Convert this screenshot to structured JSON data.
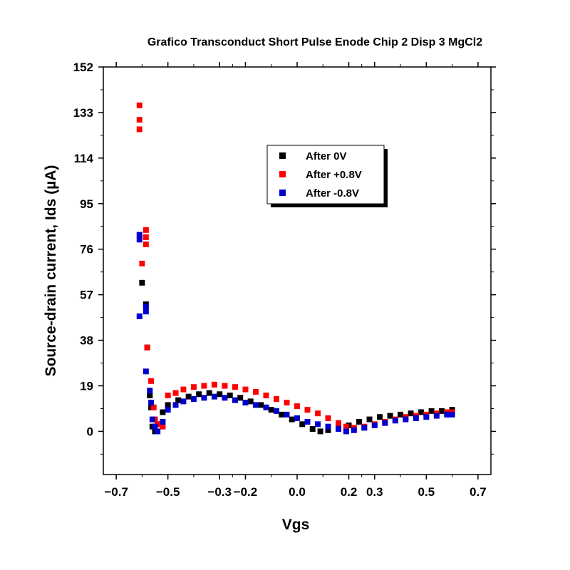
{
  "chart_data": {
    "type": "scatter",
    "title": "Grafico Transconduct Short Pulse Enode Chip 2 Disp 3 MgCl2",
    "xlabel": "Vgs",
    "ylabel": "Source-drain current, Ids (µA)",
    "xlim": [
      -0.75,
      0.75
    ],
    "ylim": [
      -18,
      152
    ],
    "x_ticks": [
      -0.7,
      -0.5,
      -0.3,
      -0.2,
      0.0,
      0.2,
      0.3,
      0.5,
      0.7
    ],
    "x_tick_labels": [
      "−0.7",
      "−0.5",
      "−0.3",
      "−0.2",
      "0.0",
      "0.2",
      "0.3",
      "0.5",
      "0.7"
    ],
    "y_ticks": [
      0,
      19,
      38,
      57,
      76,
      95,
      114,
      133,
      152
    ],
    "y_tick_labels": [
      "0",
      "19",
      "38",
      "57",
      "76",
      "95",
      "114",
      "133",
      "152"
    ],
    "grid": false,
    "legend_position": "top-right",
    "series": [
      {
        "name": "After 0V",
        "color": "#000000",
        "points": [
          [
            -0.6,
            62
          ],
          [
            -0.585,
            53
          ],
          [
            -0.58,
            35
          ],
          [
            -0.57,
            15
          ],
          [
            -0.565,
            10
          ],
          [
            -0.56,
            2
          ],
          [
            -0.55,
            0
          ],
          [
            -0.54,
            3
          ],
          [
            -0.52,
            8
          ],
          [
            -0.5,
            11
          ],
          [
            -0.46,
            13
          ],
          [
            -0.42,
            14.5
          ],
          [
            -0.38,
            15.5
          ],
          [
            -0.34,
            16
          ],
          [
            -0.3,
            15.5
          ],
          [
            -0.26,
            15
          ],
          [
            -0.22,
            14
          ],
          [
            -0.18,
            12.5
          ],
          [
            -0.14,
            11
          ],
          [
            -0.1,
            9
          ],
          [
            -0.06,
            7
          ],
          [
            -0.02,
            5
          ],
          [
            0.02,
            3
          ],
          [
            0.06,
            1
          ],
          [
            0.09,
            0
          ],
          [
            0.12,
            0.5
          ],
          [
            0.16,
            1.5
          ],
          [
            0.2,
            2.5
          ],
          [
            0.24,
            4
          ],
          [
            0.28,
            5
          ],
          [
            0.32,
            6
          ],
          [
            0.36,
            6.5
          ],
          [
            0.4,
            7
          ],
          [
            0.44,
            7.5
          ],
          [
            0.48,
            8
          ],
          [
            0.52,
            8.5
          ],
          [
            0.56,
            8.5
          ],
          [
            0.6,
            9
          ]
        ]
      },
      {
        "name": "After +0.8V",
        "color": "#ff0000",
        "points": [
          [
            -0.61,
            136
          ],
          [
            -0.61,
            130
          ],
          [
            -0.61,
            126
          ],
          [
            -0.6,
            70
          ],
          [
            -0.585,
            84
          ],
          [
            -0.585,
            81
          ],
          [
            -0.585,
            78
          ],
          [
            -0.58,
            35
          ],
          [
            -0.565,
            21
          ],
          [
            -0.555,
            10
          ],
          [
            -0.55,
            5
          ],
          [
            -0.54,
            3
          ],
          [
            -0.52,
            2
          ],
          [
            -0.5,
            15
          ],
          [
            -0.47,
            16
          ],
          [
            -0.44,
            17.5
          ],
          [
            -0.4,
            18.5
          ],
          [
            -0.36,
            19
          ],
          [
            -0.32,
            19.5
          ],
          [
            -0.28,
            19
          ],
          [
            -0.24,
            18.5
          ],
          [
            -0.2,
            17.5
          ],
          [
            -0.16,
            16.5
          ],
          [
            -0.12,
            15
          ],
          [
            -0.08,
            13.5
          ],
          [
            -0.04,
            12
          ],
          [
            0.0,
            10.5
          ],
          [
            0.04,
            9
          ],
          [
            0.08,
            7.5
          ],
          [
            0.12,
            5.5
          ],
          [
            0.16,
            3.5
          ],
          [
            0.19,
            2
          ],
          [
            0.22,
            1.5
          ],
          [
            0.26,
            2
          ],
          [
            0.3,
            3
          ],
          [
            0.34,
            4
          ],
          [
            0.38,
            5
          ],
          [
            0.42,
            6
          ],
          [
            0.46,
            6.5
          ],
          [
            0.5,
            7
          ],
          [
            0.54,
            7.5
          ],
          [
            0.58,
            8
          ],
          [
            0.6,
            8
          ]
        ]
      },
      {
        "name": "After -0.8V",
        "color": "#0000cc",
        "points": [
          [
            -0.61,
            82
          ],
          [
            -0.61,
            80
          ],
          [
            -0.61,
            48
          ],
          [
            -0.585,
            50
          ],
          [
            -0.585,
            52
          ],
          [
            -0.585,
            25
          ],
          [
            -0.57,
            17
          ],
          [
            -0.565,
            12
          ],
          [
            -0.56,
            5
          ],
          [
            -0.55,
            2
          ],
          [
            -0.54,
            0
          ],
          [
            -0.52,
            4
          ],
          [
            -0.5,
            9
          ],
          [
            -0.47,
            11
          ],
          [
            -0.44,
            12.5
          ],
          [
            -0.4,
            13.5
          ],
          [
            -0.36,
            14
          ],
          [
            -0.32,
            14.5
          ],
          [
            -0.28,
            14
          ],
          [
            -0.24,
            13
          ],
          [
            -0.2,
            12
          ],
          [
            -0.16,
            11
          ],
          [
            -0.12,
            10
          ],
          [
            -0.08,
            8.5
          ],
          [
            -0.04,
            7
          ],
          [
            0.0,
            5.5
          ],
          [
            0.04,
            4
          ],
          [
            0.08,
            3
          ],
          [
            0.12,
            2
          ],
          [
            0.16,
            1
          ],
          [
            0.19,
            0
          ],
          [
            0.22,
            0.5
          ],
          [
            0.26,
            1.5
          ],
          [
            0.3,
            2.5
          ],
          [
            0.34,
            3.5
          ],
          [
            0.38,
            4.5
          ],
          [
            0.42,
            5
          ],
          [
            0.46,
            5.5
          ],
          [
            0.5,
            6
          ],
          [
            0.54,
            6.5
          ],
          [
            0.58,
            7
          ],
          [
            0.6,
            7
          ]
        ]
      }
    ]
  }
}
